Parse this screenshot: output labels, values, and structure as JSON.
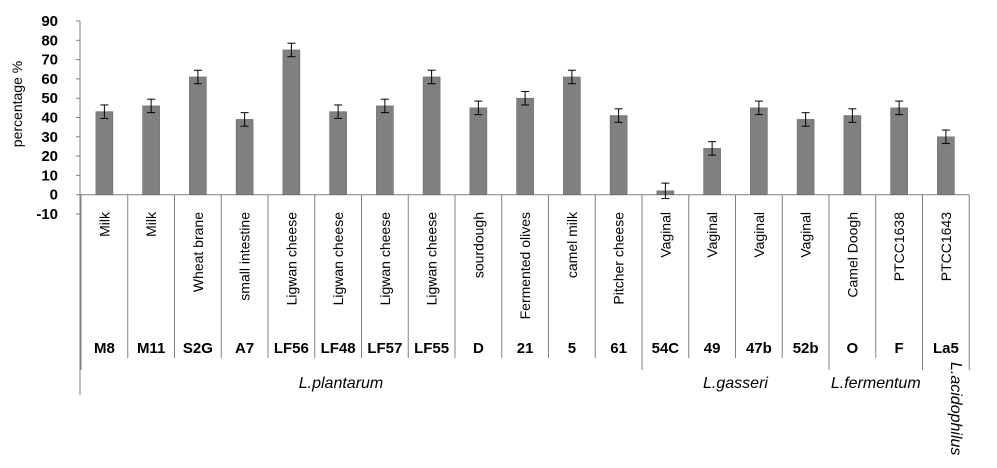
{
  "chart_data": {
    "type": "bar",
    "ylabel": "percentage %",
    "ylim": [
      -10,
      90
    ],
    "yticks": [
      90,
      80,
      70,
      60,
      50,
      40,
      30,
      20,
      10,
      0,
      -10
    ],
    "grid": false,
    "bar_color": "#808080",
    "error_bars": true,
    "categories": [
      {
        "strain": "M8",
        "source": "Milk"
      },
      {
        "strain": "M11",
        "source": "Milk"
      },
      {
        "strain": "S2G",
        "source": "Wheat brane"
      },
      {
        "strain": "A7",
        "source": "small intestine"
      },
      {
        "strain": "LF56",
        "source": "Ligwan cheese"
      },
      {
        "strain": "LF48",
        "source": "Ligwan cheese"
      },
      {
        "strain": "LF57",
        "source": "Ligwan cheese"
      },
      {
        "strain": "LF55",
        "source": "Ligwan cheese"
      },
      {
        "strain": "D",
        "source": "sourdough"
      },
      {
        "strain": "21",
        "source": "Fermented olives"
      },
      {
        "strain": "5",
        "source": "camel milk"
      },
      {
        "strain": "61",
        "source": "Pitcher cheese"
      },
      {
        "strain": "54C",
        "source": "Vaginal"
      },
      {
        "strain": "49",
        "source": "Vaginal"
      },
      {
        "strain": "47b",
        "source": "Vaginal"
      },
      {
        "strain": "52b",
        "source": "Vaginal"
      },
      {
        "strain": "O",
        "source": "Camel Doogh"
      },
      {
        "strain": "F",
        "source": "PTCC1638"
      },
      {
        "strain": "La5",
        "source": "PTCC1643"
      }
    ],
    "values": [
      43,
      46,
      61,
      39,
      75,
      43,
      46,
      61,
      45,
      50,
      61,
      41,
      2,
      24,
      45,
      39,
      41,
      45,
      30
    ],
    "errors": [
      3.5,
      3.5,
      3.5,
      3.5,
      3.5,
      3.5,
      3.5,
      3.5,
      3.5,
      3.5,
      3.5,
      3.5,
      4,
      3.5,
      3.5,
      3.5,
      3.5,
      3.5,
      3.5
    ],
    "groups": [
      {
        "name": "L.plantarum",
        "start": 0,
        "end": 11
      },
      {
        "name": "L.gasseri",
        "start": 12,
        "end": 15
      },
      {
        "name": "L.fermentum",
        "start": 16,
        "end": 17
      },
      {
        "name": "L.acidophilus",
        "start": 18,
        "end": 18
      }
    ]
  }
}
